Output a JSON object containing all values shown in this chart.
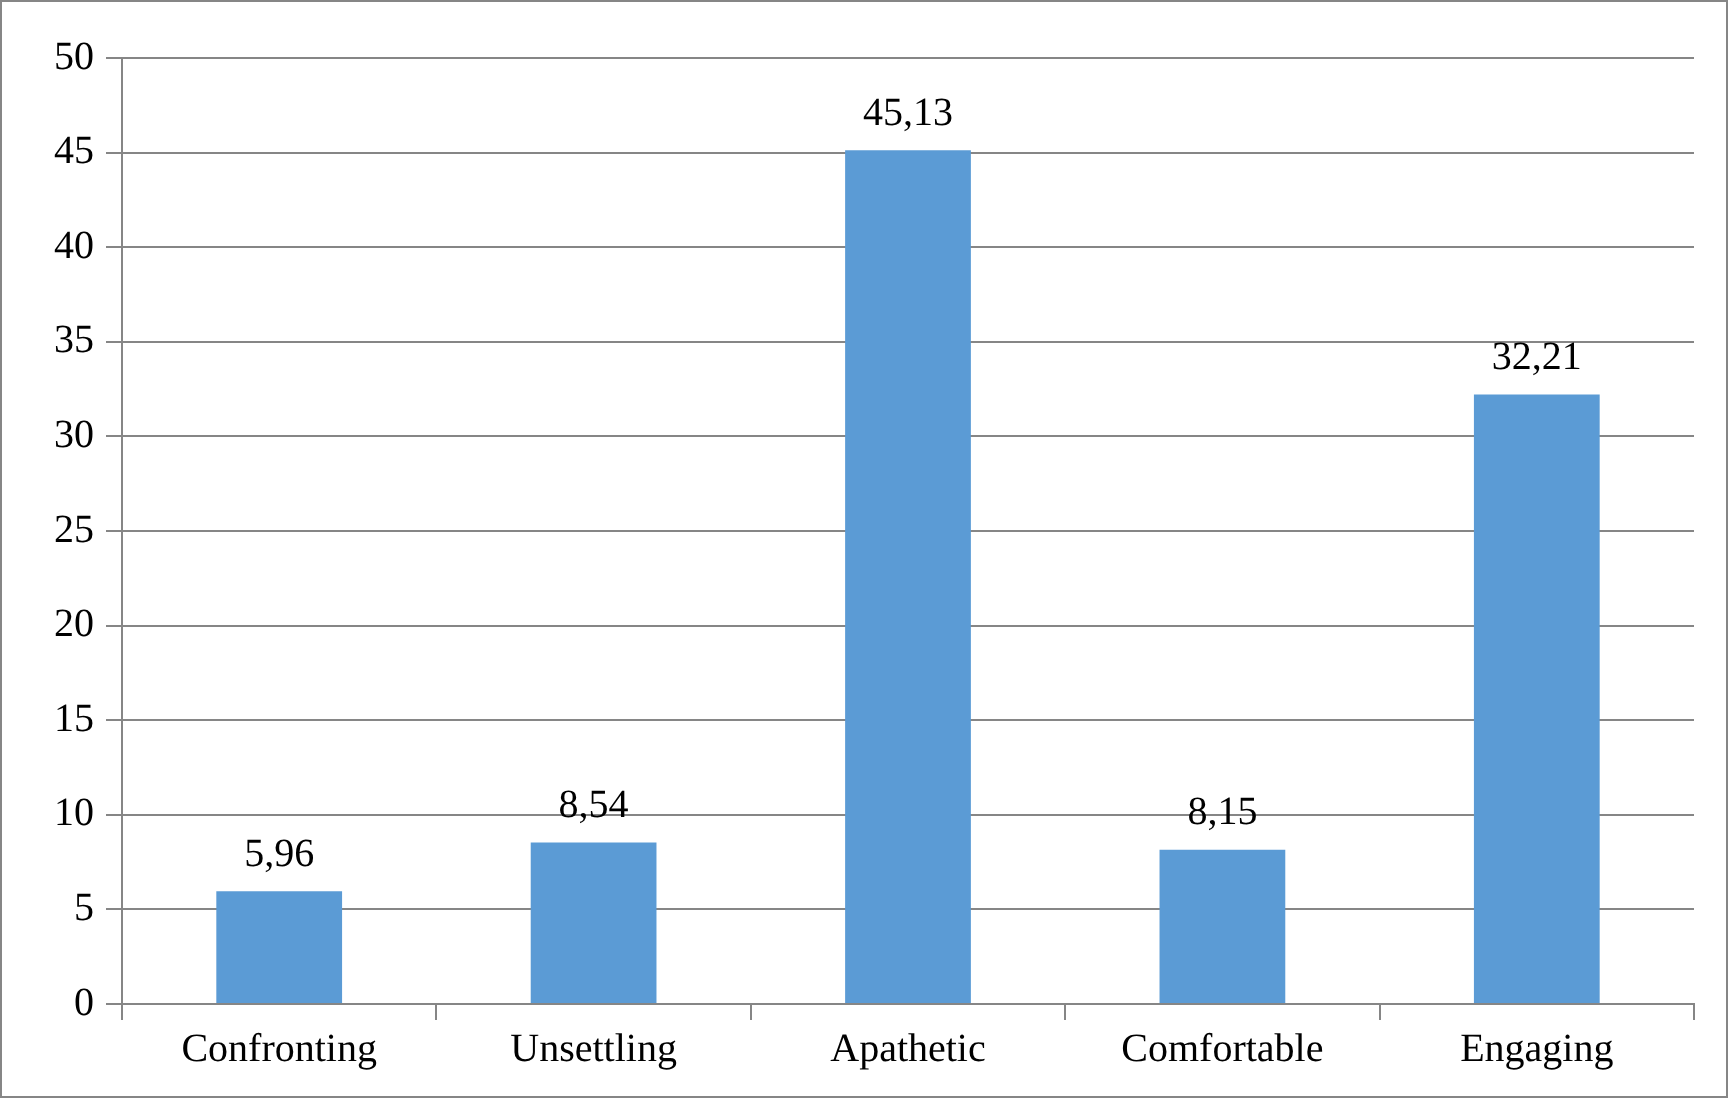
{
  "chart_data": {
    "type": "bar",
    "categories": [
      "Confronting",
      "Unsettling",
      "Apathetic",
      "Comfortable",
      "Engaging"
    ],
    "values": [
      5.96,
      8.54,
      45.13,
      8.15,
      32.21
    ],
    "value_labels": [
      "5,96",
      "8,54",
      "45,13",
      "8,15",
      "32,21"
    ],
    "color": "#5b9bd5",
    "ylim": [
      0,
      50
    ],
    "yticks": [
      0,
      5,
      10,
      15,
      20,
      25,
      30,
      35,
      40,
      45,
      50
    ],
    "grid": "y",
    "legend": false
  }
}
